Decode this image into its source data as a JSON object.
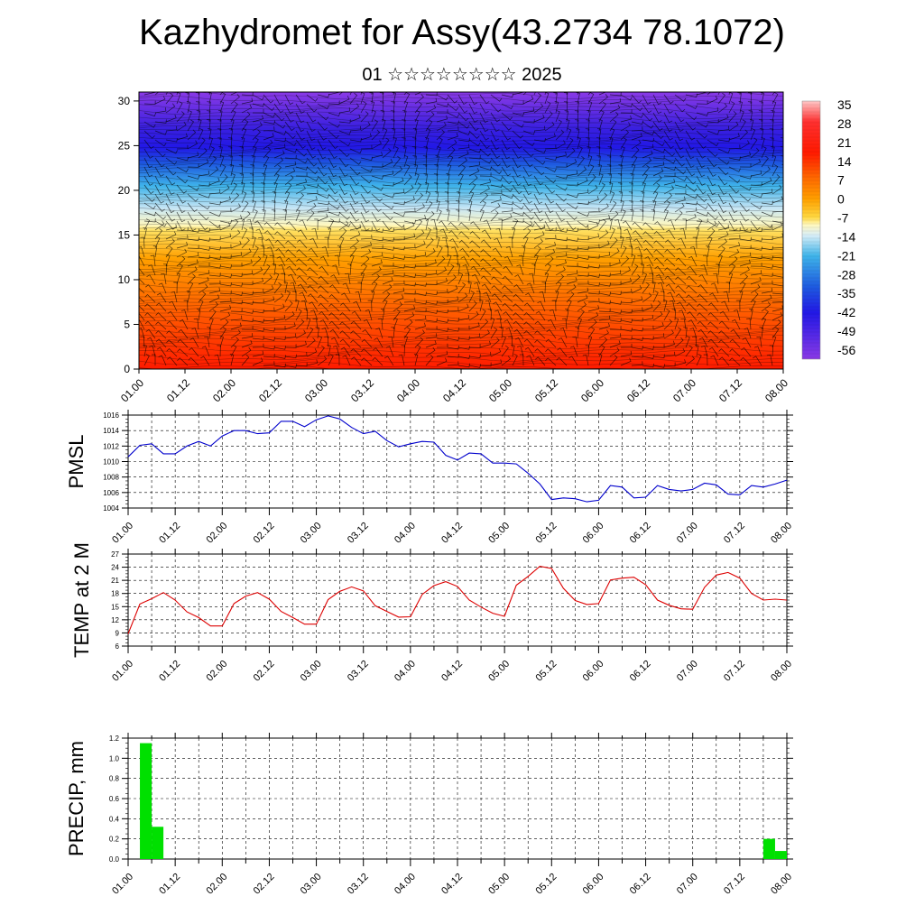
{
  "header": {
    "title": "Kazhydromet for Assy(43.2734 78.1072)",
    "subtitle": "01 ☆☆☆☆☆☆☆☆ 2025"
  },
  "time_labels": [
    "01.00",
    "01.12",
    "02.00",
    "02.12",
    "03.00",
    "03.12",
    "04.00",
    "04.12",
    "05.00",
    "05.12",
    "06.00",
    "06.12",
    "07.00",
    "07.12",
    "08.00"
  ],
  "colors": {
    "pmsl": "#0000cc",
    "temp": "#dd0000",
    "precip": "#00e000"
  },
  "chart_data": [
    {
      "type": "heatmap",
      "name": "temperature-height-section",
      "x_labels": [
        "01.00",
        "01.12",
        "02.00",
        "02.12",
        "03.00",
        "03.12",
        "04.00",
        "04.12",
        "05.00",
        "05.12",
        "06.00",
        "06.12",
        "07.00",
        "07.12",
        "08.00"
      ],
      "ylim": [
        0,
        31
      ],
      "yticks": [
        0,
        5,
        10,
        15,
        20,
        25,
        30
      ],
      "colorbar": {
        "labels": [
          "35",
          "28",
          "21",
          "14",
          "7",
          "0",
          "-7",
          "-14",
          "-21",
          "-28",
          "-35",
          "-42",
          "-49",
          "-56"
        ],
        "range": [
          -63,
          42
        ]
      },
      "wind_barbs": true
    },
    {
      "type": "line",
      "ylabel": "PMSL",
      "ylim": [
        1004,
        1016
      ],
      "yticks": [
        "1004",
        "1006",
        "1008",
        "1010",
        "1012",
        "1014",
        "1016"
      ],
      "x_labels": [
        "01.00",
        "01.12",
        "02.00",
        "02.12",
        "03.00",
        "03.12",
        "04.00",
        "04.12",
        "05.00",
        "05.12",
        "06.00",
        "06.12",
        "07.00",
        "07.12",
        "08.00"
      ],
      "x_step_hours": 3,
      "values": [
        1010.6,
        1012.1,
        1012.3,
        1011.0,
        1011.0,
        1012.0,
        1012.6,
        1012.0,
        1013.3,
        1014.0,
        1014.0,
        1013.6,
        1013.7,
        1015.2,
        1015.2,
        1014.5,
        1015.4,
        1015.9,
        1015.5,
        1014.4,
        1013.6,
        1013.9,
        1012.7,
        1011.9,
        1012.3,
        1012.6,
        1012.5,
        1010.8,
        1010.2,
        1011.1,
        1011.0,
        1009.8,
        1009.8,
        1009.7,
        1008.5,
        1007.1,
        1005.1,
        1005.3,
        1005.2,
        1004.8,
        1005.0,
        1006.9,
        1006.7,
        1005.3,
        1005.4,
        1006.9,
        1006.4,
        1006.2,
        1006.4,
        1007.2,
        1007.0,
        1005.8,
        1005.7,
        1006.9,
        1006.7,
        1007.1,
        1007.6
      ]
    },
    {
      "type": "line",
      "ylabel": "TEMP at 2 M",
      "ylim": [
        6,
        27
      ],
      "yticks": [
        "6",
        "9",
        "12",
        "15",
        "18",
        "21",
        "24",
        "27"
      ],
      "x_labels": [
        "01.00",
        "01.12",
        "02.00",
        "02.12",
        "03.00",
        "03.12",
        "04.00",
        "04.12",
        "05.00",
        "05.12",
        "06.00",
        "06.12",
        "07.00",
        "07.12",
        "08.00"
      ],
      "x_step_hours": 3,
      "values": [
        8.8,
        15.6,
        16.8,
        18.2,
        16.5,
        13.8,
        12.5,
        10.6,
        10.6,
        15.7,
        17.4,
        18.2,
        16.7,
        13.9,
        12.5,
        11.0,
        11.0,
        16.6,
        18.5,
        19.5,
        18.6,
        15.2,
        13.9,
        12.6,
        12.7,
        17.8,
        19.8,
        20.7,
        19.6,
        16.5,
        14.9,
        13.5,
        12.8,
        19.9,
        21.9,
        24.2,
        23.7,
        19.2,
        16.4,
        15.5,
        15.7,
        21.1,
        21.5,
        21.7,
        20.0,
        16.5,
        15.3,
        14.5,
        14.4,
        19.4,
        22.2,
        22.8,
        21.5,
        18.0,
        16.5,
        16.7,
        16.5
      ]
    },
    {
      "type": "bar",
      "ylabel": "PRECIP, mm",
      "ylim": [
        0,
        1.2
      ],
      "yticks": [
        "0.0",
        "0.2",
        "0.4",
        "0.6",
        "0.8",
        "1.0",
        "1.2"
      ],
      "x_labels": [
        "01.00",
        "01.12",
        "02.00",
        "02.12",
        "03.00",
        "03.12",
        "04.00",
        "04.12",
        "05.00",
        "05.12",
        "06.00",
        "06.12",
        "07.00",
        "07.12",
        "08.00"
      ],
      "bars": [
        {
          "start_hour": 3,
          "end_hour": 6,
          "value": 1.15
        },
        {
          "start_hour": 6,
          "end_hour": 9,
          "value": 0.32
        },
        {
          "start_hour": 162,
          "end_hour": 165,
          "value": 0.2
        },
        {
          "start_hour": 165,
          "end_hour": 168,
          "value": 0.08
        }
      ]
    }
  ]
}
